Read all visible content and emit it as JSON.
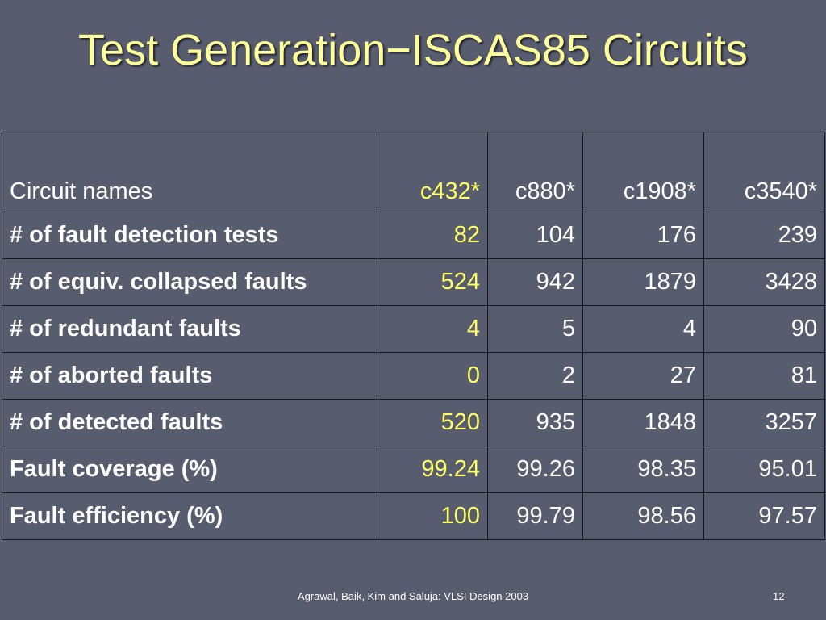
{
  "title": "Test Generation−ISCAS85 Circuits",
  "table": {
    "header": {
      "label": "Circuit names",
      "cells": [
        "c432*",
        "c880*",
        "c1908*",
        "c3540*"
      ]
    },
    "rows": [
      {
        "label": "# of fault detection tests",
        "cells": [
          "82",
          "104",
          "176",
          "239"
        ]
      },
      {
        "label": "# of equiv. collapsed faults",
        "cells": [
          "524",
          "942",
          "1879",
          "3428"
        ]
      },
      {
        "label": "# of redundant faults",
        "cells": [
          "4",
          "5",
          "4",
          "90"
        ]
      },
      {
        "label": "# of aborted faults",
        "cells": [
          "0",
          "2",
          "27",
          "81"
        ]
      },
      {
        "label": "# of detected faults",
        "cells": [
          "520",
          "935",
          "1848",
          "3257"
        ]
      },
      {
        "label": "Fault coverage (%)",
        "cells": [
          "99.24",
          "99.26",
          "98.35",
          "95.01"
        ]
      },
      {
        "label": "Fault efficiency (%)",
        "cells": [
          "100",
          "99.79",
          "98.56",
          "97.57"
        ]
      }
    ]
  },
  "footer": {
    "text": "Agrawal, Baik, Kim and Saluja: VLSI Design 2003",
    "page": "12"
  },
  "colors": {
    "background": "#575c6e",
    "title": "#ffff99",
    "highlight": "#ffff66",
    "text": "#ffffff"
  }
}
